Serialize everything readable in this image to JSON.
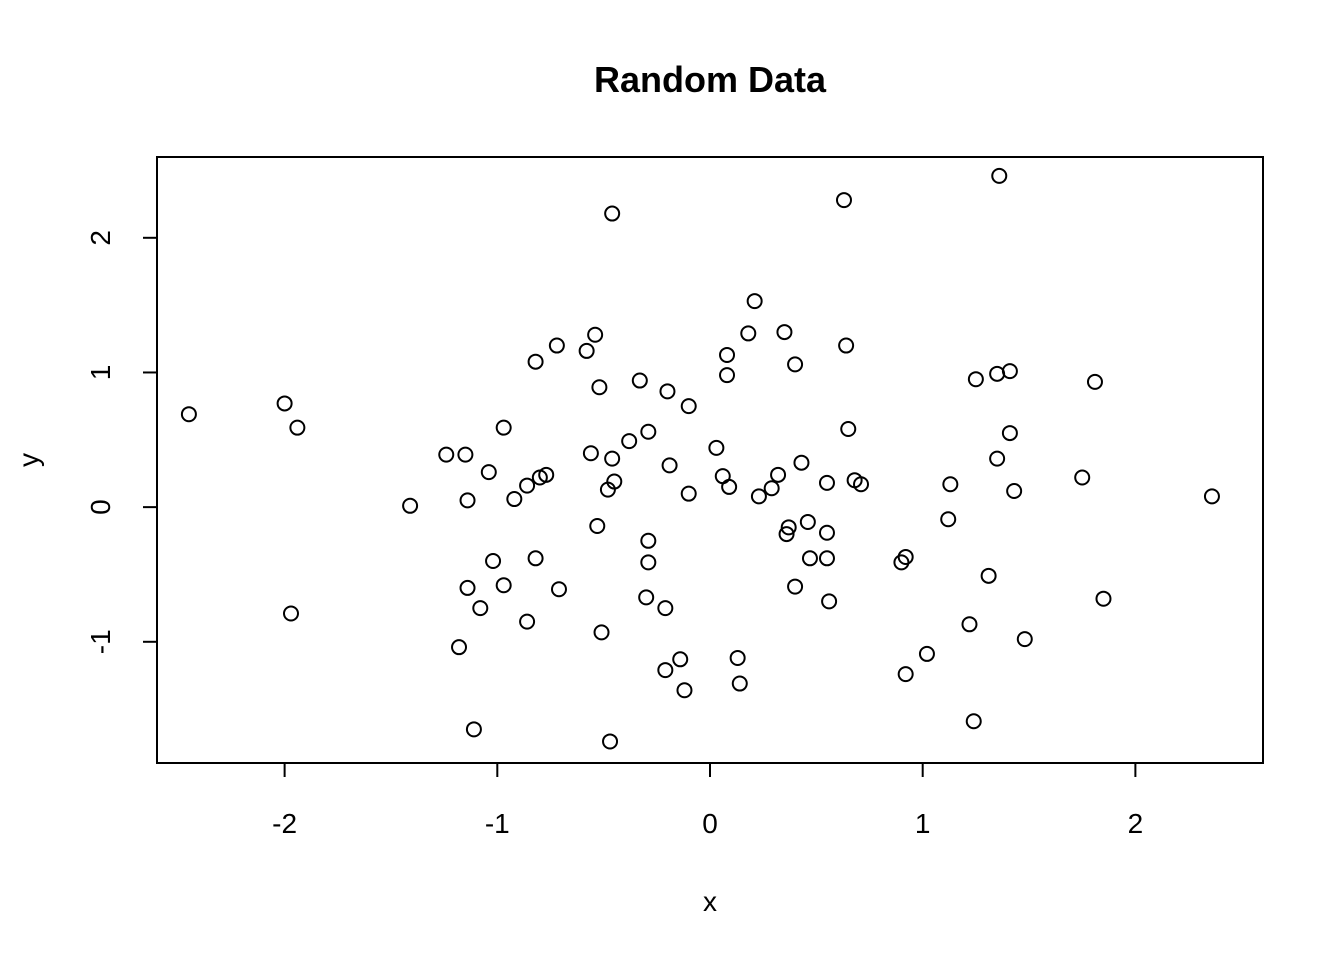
{
  "chart_data": {
    "type": "scatter",
    "title": "Random Data",
    "xlabel": "x",
    "ylabel": "y",
    "xlim": [
      -2.6,
      2.6
    ],
    "ylim": [
      -1.9,
      2.6
    ],
    "xticks": [
      -2,
      -1,
      0,
      1,
      2
    ],
    "yticks": [
      -1,
      0,
      1,
      2
    ],
    "xtick_labels": [
      "-2",
      "-1",
      "0",
      "1",
      "2"
    ],
    "ytick_labels": [
      "-1",
      "0",
      "1",
      "2"
    ],
    "grid": false,
    "marker": "open-circle",
    "colors": {
      "point": "#000000",
      "axis": "#000000"
    },
    "points": [
      {
        "x": -2.45,
        "y": 0.69
      },
      {
        "x": -2.0,
        "y": 0.77
      },
      {
        "x": -1.94,
        "y": 0.59
      },
      {
        "x": -1.97,
        "y": -0.79
      },
      {
        "x": -1.41,
        "y": 0.01
      },
      {
        "x": -1.24,
        "y": 0.39
      },
      {
        "x": -1.15,
        "y": 0.39
      },
      {
        "x": -1.14,
        "y": 0.05
      },
      {
        "x": -1.14,
        "y": -0.6
      },
      {
        "x": -1.08,
        "y": -0.75
      },
      {
        "x": -1.18,
        "y": -1.04
      },
      {
        "x": -1.11,
        "y": -1.65
      },
      {
        "x": -1.04,
        "y": 0.26
      },
      {
        "x": -1.02,
        "y": -0.4
      },
      {
        "x": -0.97,
        "y": 0.59
      },
      {
        "x": -0.97,
        "y": -0.58
      },
      {
        "x": -0.92,
        "y": 0.06
      },
      {
        "x": -0.86,
        "y": 0.16
      },
      {
        "x": -0.86,
        "y": -0.85
      },
      {
        "x": -0.82,
        "y": 1.08
      },
      {
        "x": -0.82,
        "y": -0.38
      },
      {
        "x": -0.8,
        "y": 0.22
      },
      {
        "x": -0.77,
        "y": 0.24
      },
      {
        "x": -0.72,
        "y": 1.2
      },
      {
        "x": -0.71,
        "y": -0.61
      },
      {
        "x": -0.58,
        "y": 1.16
      },
      {
        "x": -0.56,
        "y": 0.4
      },
      {
        "x": -0.54,
        "y": 1.28
      },
      {
        "x": -0.53,
        "y": -0.14
      },
      {
        "x": -0.52,
        "y": 0.89
      },
      {
        "x": -0.51,
        "y": -0.93
      },
      {
        "x": -0.48,
        "y": 0.13
      },
      {
        "x": -0.46,
        "y": 2.18
      },
      {
        "x": -0.46,
        "y": 0.36
      },
      {
        "x": -0.45,
        "y": 0.19
      },
      {
        "x": -0.47,
        "y": -1.74
      },
      {
        "x": -0.38,
        "y": 0.49
      },
      {
        "x": -0.33,
        "y": 0.94
      },
      {
        "x": -0.29,
        "y": 0.56
      },
      {
        "x": -0.29,
        "y": -0.25
      },
      {
        "x": -0.29,
        "y": -0.41
      },
      {
        "x": -0.3,
        "y": -0.67
      },
      {
        "x": -0.2,
        "y": 0.86
      },
      {
        "x": -0.19,
        "y": 0.31
      },
      {
        "x": -0.21,
        "y": -0.75
      },
      {
        "x": -0.21,
        "y": -1.21
      },
      {
        "x": -0.14,
        "y": -1.13
      },
      {
        "x": -0.1,
        "y": 0.75
      },
      {
        "x": -0.1,
        "y": 0.1
      },
      {
        "x": -0.12,
        "y": -1.36
      },
      {
        "x": 0.03,
        "y": 0.44
      },
      {
        "x": 0.06,
        "y": 0.23
      },
      {
        "x": 0.08,
        "y": 1.13
      },
      {
        "x": 0.08,
        "y": 0.98
      },
      {
        "x": 0.09,
        "y": 0.15
      },
      {
        "x": 0.13,
        "y": -1.12
      },
      {
        "x": 0.14,
        "y": -1.31
      },
      {
        "x": 0.18,
        "y": 1.29
      },
      {
        "x": 0.21,
        "y": 1.53
      },
      {
        "x": 0.23,
        "y": 0.08
      },
      {
        "x": 0.29,
        "y": 0.14
      },
      {
        "x": 0.32,
        "y": 0.24
      },
      {
        "x": 0.35,
        "y": 1.3
      },
      {
        "x": 0.36,
        "y": -0.2
      },
      {
        "x": 0.37,
        "y": -0.15
      },
      {
        "x": 0.4,
        "y": 1.06
      },
      {
        "x": 0.4,
        "y": -0.59
      },
      {
        "x": 0.43,
        "y": 0.33
      },
      {
        "x": 0.46,
        "y": -0.11
      },
      {
        "x": 0.47,
        "y": -0.38
      },
      {
        "x": 0.55,
        "y": 0.18
      },
      {
        "x": 0.55,
        "y": -0.19
      },
      {
        "x": 0.55,
        "y": -0.38
      },
      {
        "x": 0.56,
        "y": -0.7
      },
      {
        "x": 0.63,
        "y": 2.28
      },
      {
        "x": 0.64,
        "y": 1.2
      },
      {
        "x": 0.65,
        "y": 0.58
      },
      {
        "x": 0.68,
        "y": 0.2
      },
      {
        "x": 0.71,
        "y": 0.17
      },
      {
        "x": 0.9,
        "y": -0.41
      },
      {
        "x": 0.92,
        "y": -0.37
      },
      {
        "x": 0.92,
        "y": -1.24
      },
      {
        "x": 1.02,
        "y": -1.09
      },
      {
        "x": 1.12,
        "y": -0.09
      },
      {
        "x": 1.13,
        "y": 0.17
      },
      {
        "x": 1.22,
        "y": -0.87
      },
      {
        "x": 1.25,
        "y": 0.95
      },
      {
        "x": 1.24,
        "y": -1.59
      },
      {
        "x": 1.31,
        "y": -0.51
      },
      {
        "x": 1.35,
        "y": 0.99
      },
      {
        "x": 1.35,
        "y": 0.36
      },
      {
        "x": 1.36,
        "y": 2.46
      },
      {
        "x": 1.41,
        "y": 1.01
      },
      {
        "x": 1.41,
        "y": 0.55
      },
      {
        "x": 1.43,
        "y": 0.12
      },
      {
        "x": 1.48,
        "y": -0.98
      },
      {
        "x": 1.75,
        "y": 0.22
      },
      {
        "x": 1.81,
        "y": 0.93
      },
      {
        "x": 1.85,
        "y": -0.68
      },
      {
        "x": 2.36,
        "y": 0.08
      }
    ]
  }
}
